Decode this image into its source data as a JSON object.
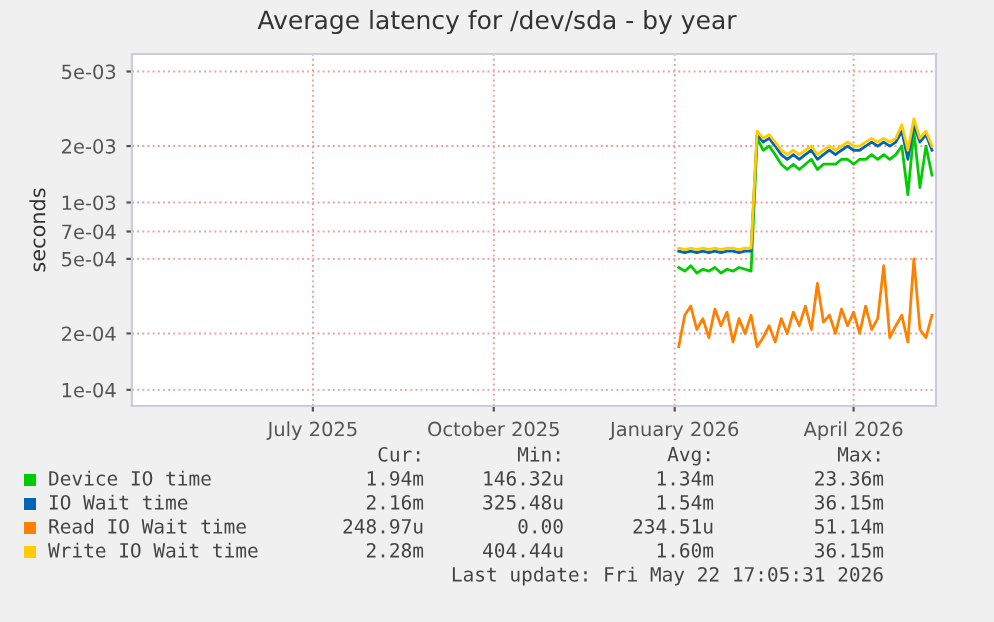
{
  "chart_data": {
    "type": "line",
    "title": "Average latency for /dev/sda - by year",
    "ylabel": "seconds",
    "log": "y",
    "grid": true,
    "legend": "bottom",
    "xlim": [
      "2025-04-17",
      "2026-05-22"
    ],
    "xticks": [
      {
        "value": "2025-07-16",
        "label": "July 2025"
      },
      {
        "value": "2025-10-14",
        "label": "October 2025"
      },
      {
        "value": "2026-01-12",
        "label": "January 2026"
      },
      {
        "value": "2026-04-11",
        "label": "April 2026"
      }
    ],
    "ylim": [
      8.2e-05,
      0.0062
    ],
    "yticks": [
      {
        "value": 0.0001,
        "label": "1e-04"
      },
      {
        "value": 0.0002,
        "label": "2e-04"
      },
      {
        "value": 0.0005,
        "label": "5e-04"
      },
      {
        "value": 0.0007,
        "label": "7e-04"
      },
      {
        "value": 0.001,
        "label": "1e-03"
      },
      {
        "value": 0.002,
        "label": "2e-03"
      },
      {
        "value": 0.005,
        "label": "5e-03"
      }
    ],
    "x": [
      "2026-01-14",
      "2026-01-17",
      "2026-01-20",
      "2026-01-23",
      "2026-01-26",
      "2026-01-29",
      "2026-02-01",
      "2026-02-04",
      "2026-02-07",
      "2026-02-10",
      "2026-02-13",
      "2026-02-16",
      "2026-02-19",
      "2026-02-22",
      "2026-02-25",
      "2026-02-28",
      "2026-03-03",
      "2026-03-06",
      "2026-03-09",
      "2026-03-12",
      "2026-03-15",
      "2026-03-18",
      "2026-03-21",
      "2026-03-24",
      "2026-03-27",
      "2026-03-30",
      "2026-04-02",
      "2026-04-05",
      "2026-04-08",
      "2026-04-11",
      "2026-04-14",
      "2026-04-17",
      "2026-04-20",
      "2026-04-23",
      "2026-04-26",
      "2026-04-29",
      "2026-05-02",
      "2026-05-05",
      "2026-05-08",
      "2026-05-11",
      "2026-05-14",
      "2026-05-17",
      "2026-05-20"
    ],
    "series": [
      {
        "name": "Device IO time",
        "color": "#00cc00",
        "values": [
          0.00045,
          0.00043,
          0.00046,
          0.00042,
          0.00044,
          0.00043,
          0.00045,
          0.00042,
          0.00044,
          0.00043,
          0.00045,
          0.00044,
          0.00043,
          0.0022,
          0.0019,
          0.002,
          0.0018,
          0.0016,
          0.0015,
          0.0016,
          0.0015,
          0.0016,
          0.0017,
          0.0015,
          0.0016,
          0.0016,
          0.0016,
          0.0017,
          0.0017,
          0.0016,
          0.0017,
          0.0017,
          0.0018,
          0.0017,
          0.0018,
          0.0017,
          0.0018,
          0.002,
          0.0011,
          0.0024,
          0.0012,
          0.002,
          0.0014
        ]
      },
      {
        "name": "IO Wait time",
        "color": "#0066b3",
        "values": [
          0.00055,
          0.00054,
          0.00055,
          0.00054,
          0.00055,
          0.00054,
          0.00055,
          0.00054,
          0.00055,
          0.00055,
          0.00054,
          0.00055,
          0.00055,
          0.0023,
          0.0021,
          0.0022,
          0.002,
          0.0018,
          0.0017,
          0.0018,
          0.0017,
          0.0018,
          0.0019,
          0.0017,
          0.0018,
          0.0019,
          0.0018,
          0.0019,
          0.002,
          0.0019,
          0.0019,
          0.002,
          0.0021,
          0.002,
          0.0021,
          0.002,
          0.0021,
          0.0024,
          0.0017,
          0.0026,
          0.0021,
          0.0023,
          0.0019
        ]
      },
      {
        "name": "Read IO Wait time",
        "color": "#ff8000",
        "values": [
          0.00017,
          0.00025,
          0.00028,
          0.00021,
          0.00024,
          0.00019,
          0.00027,
          0.00022,
          0.00026,
          0.00018,
          0.00024,
          0.0002,
          0.00025,
          0.00017,
          0.00019,
          0.00022,
          0.00018,
          0.00024,
          0.0002,
          0.00026,
          0.00022,
          0.00028,
          0.00021,
          0.00037,
          0.00023,
          0.00025,
          0.0002,
          0.00027,
          0.00022,
          0.00026,
          0.0002,
          0.00028,
          0.00021,
          0.00024,
          0.00046,
          0.00019,
          0.00022,
          0.00025,
          0.00018,
          0.0005,
          0.00021,
          0.00019,
          0.00025
        ]
      },
      {
        "name": "Write IO Wait time",
        "color": "#ffcc00",
        "values": [
          0.00057,
          0.00056,
          0.00057,
          0.00056,
          0.00057,
          0.00056,
          0.00057,
          0.00056,
          0.00057,
          0.00057,
          0.00056,
          0.00057,
          0.00057,
          0.0024,
          0.0022,
          0.0023,
          0.0021,
          0.0019,
          0.0018,
          0.0019,
          0.0018,
          0.0019,
          0.002,
          0.0018,
          0.0019,
          0.002,
          0.0019,
          0.002,
          0.0021,
          0.002,
          0.002,
          0.0021,
          0.0022,
          0.0021,
          0.0022,
          0.0021,
          0.0022,
          0.0026,
          0.0019,
          0.0028,
          0.0022,
          0.0024,
          0.002
        ]
      }
    ],
    "annotations": [
      "Cur:",
      "Min:",
      "Avg:",
      "Max:",
      "1.94m",
      "146.32u",
      "1.34m",
      "23.36m",
      "2.16m",
      "325.48u",
      "1.54m",
      "36.15m",
      "248.97u",
      "0.00",
      "234.51u",
      "51.14m",
      "2.28m",
      "404.44u",
      "1.60m",
      "36.15m",
      "Last update: Fri May 22 17:05:31 2026"
    ]
  }
}
